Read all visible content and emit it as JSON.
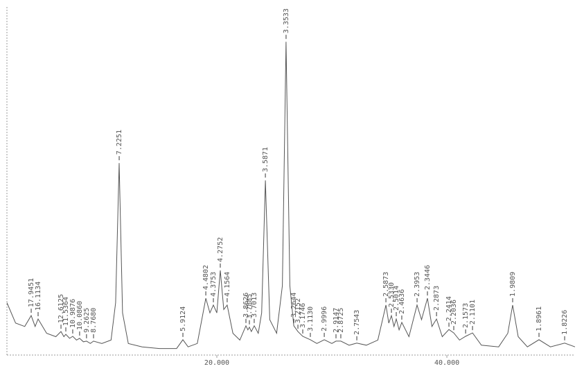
{
  "chart_data": {
    "type": "line",
    "x": [
      1.75,
      2.5,
      3.3,
      3.86,
      4.2,
      4.46,
      5.2,
      6.0,
      6.45,
      6.7,
      6.87,
      7.2,
      7.47,
      7.8,
      8.07,
      8.4,
      8.67,
      9.0,
      9.28,
      10.0,
      10.8,
      11.2,
      11.51,
      11.8,
      12.3,
      13.5,
      15,
      16.5,
      17.05,
      17.5,
      18.3,
      19.04,
      19.4,
      19.7,
      20.0,
      20.3,
      20.6,
      20.9,
      21.4,
      22.0,
      22.53,
      22.7,
      22.83,
      23.0,
      23.25,
      23.6,
      23.9,
      24.22,
      24.6,
      25.2,
      25.7,
      26.02,
      26.35,
      26.69,
      27.05,
      27.47,
      28.13,
      28.7,
      29.34,
      30.0,
      30.36,
      30.78,
      31.5,
      32.17,
      33,
      34.0,
      34.7,
      34.95,
      35.18,
      35.4,
      35.6,
      35.85,
      36.08,
      36.7,
      37.41,
      37.8,
      38.31,
      38.7,
      39.1,
      39.6,
      40.18,
      40.6,
      41.1,
      41.63,
      42.23,
      43,
      44.5,
      45.3,
      45.72,
      46.2,
      47,
      48.01,
      49,
      50.24,
      51.14
    ],
    "values": [
      15,
      9,
      8,
      11.2,
      8,
      10.2,
      6,
      5,
      6.5,
      5,
      5.7,
      4.5,
      5.1,
      4,
      4.5,
      3.5,
      3.7,
      3,
      3.7,
      3,
      4,
      15,
      56.1,
      12,
      3,
      2,
      1.5,
      1.5,
      4.1,
      2,
      3,
      16.3,
      12,
      14.3,
      12,
      24.5,
      13,
      14.3,
      6,
      4,
      8.2,
      7,
      7.8,
      6.5,
      8.2,
      6,
      12,
      51.0,
      10,
      6,
      20,
      91.8,
      20,
      8.2,
      6.5,
      5.1,
      4.1,
      3,
      4.1,
      3,
      3.7,
      3.7,
      2.5,
      3.1,
      2.5,
      4,
      14.3,
      9,
      11.2,
      8,
      10.2,
      7,
      9.2,
      5,
      14.3,
      10,
      16.3,
      8,
      10.2,
      5,
      7.1,
      6.1,
      4,
      5.1,
      6.1,
      2.5,
      2,
      6,
      14.3,
      5,
      2,
      4.1,
      2,
      3.1,
      2
    ],
    "color": "#555555",
    "xlim": [
      1.75,
      51.14
    ],
    "xticks": [
      {
        "value": 20,
        "label": "20.000"
      },
      {
        "value": 40,
        "label": "40.000"
      }
    ],
    "ylim": [
      0,
      100
    ],
    "annotations": [
      {
        "x": 3.86,
        "y": 11.2,
        "label": "17.9451"
      },
      {
        "x": 4.46,
        "y": 10.2,
        "label": "16.1134"
      },
      {
        "x": 6.45,
        "y": 6.5,
        "label": "12.6125"
      },
      {
        "x": 6.87,
        "y": 5.7,
        "label": "11.5364"
      },
      {
        "x": 7.47,
        "y": 5.1,
        "label": "10.9876"
      },
      {
        "x": 8.07,
        "y": 4.5,
        "label": "10.0860"
      },
      {
        "x": 8.67,
        "y": 3.7,
        "label": "9.2625"
      },
      {
        "x": 9.28,
        "y": 3.7,
        "label": "8.7680"
      },
      {
        "x": 11.51,
        "y": 56.1,
        "label": "7.2251"
      },
      {
        "x": 17.05,
        "y": 4.1,
        "label": "5.9124"
      },
      {
        "x": 19.04,
        "y": 16.3,
        "label": "4.4802"
      },
      {
        "x": 19.7,
        "y": 14.3,
        "label": "4.3753"
      },
      {
        "x": 20.3,
        "y": 24.5,
        "label": "4.2752"
      },
      {
        "x": 20.9,
        "y": 14.3,
        "label": "4.1564"
      },
      {
        "x": 22.53,
        "y": 8.2,
        "label": "3.8626"
      },
      {
        "x": 22.83,
        "y": 7.8,
        "label": "3.7885"
      },
      {
        "x": 23.25,
        "y": 8.2,
        "label": "3.7013"
      },
      {
        "x": 24.22,
        "y": 51.0,
        "label": "3.5871"
      },
      {
        "x": 26.02,
        "y": 91.8,
        "label": "3.3533"
      },
      {
        "x": 26.69,
        "y": 8.2,
        "label": "3.2644"
      },
      {
        "x": 27.05,
        "y": 6.5,
        "label": "3.2152"
      },
      {
        "x": 27.47,
        "y": 5.1,
        "label": "3.1746"
      },
      {
        "x": 28.13,
        "y": 4.1,
        "label": "3.1130"
      },
      {
        "x": 29.34,
        "y": 4.1,
        "label": "2.9996"
      },
      {
        "x": 30.36,
        "y": 3.7,
        "label": "2.9147"
      },
      {
        "x": 30.78,
        "y": 3.7,
        "label": "2.8725"
      },
      {
        "x": 32.17,
        "y": 3.1,
        "label": "2.7543"
      },
      {
        "x": 34.7,
        "y": 14.3,
        "label": "2.5873"
      },
      {
        "x": 35.18,
        "y": 11.2,
        "label": "2.5330"
      },
      {
        "x": 35.6,
        "y": 10.2,
        "label": "2.5014"
      },
      {
        "x": 36.08,
        "y": 9.2,
        "label": "2.4636"
      },
      {
        "x": 37.41,
        "y": 14.3,
        "label": "2.3953"
      },
      {
        "x": 38.31,
        "y": 16.3,
        "label": "2.3446"
      },
      {
        "x": 39.1,
        "y": 10.2,
        "label": "2.2873"
      },
      {
        "x": 40.18,
        "y": 7.1,
        "label": "2.2414"
      },
      {
        "x": 40.6,
        "y": 6.1,
        "label": "2.2036"
      },
      {
        "x": 41.63,
        "y": 5.1,
        "label": "2.1573"
      },
      {
        "x": 42.23,
        "y": 6.1,
        "label": "2.1101"
      },
      {
        "x": 45.72,
        "y": 14.3,
        "label": "1.9809"
      },
      {
        "x": 48.01,
        "y": 4.1,
        "label": "1.8961"
      },
      {
        "x": 50.24,
        "y": 3.1,
        "label": "1.8226"
      }
    ]
  }
}
